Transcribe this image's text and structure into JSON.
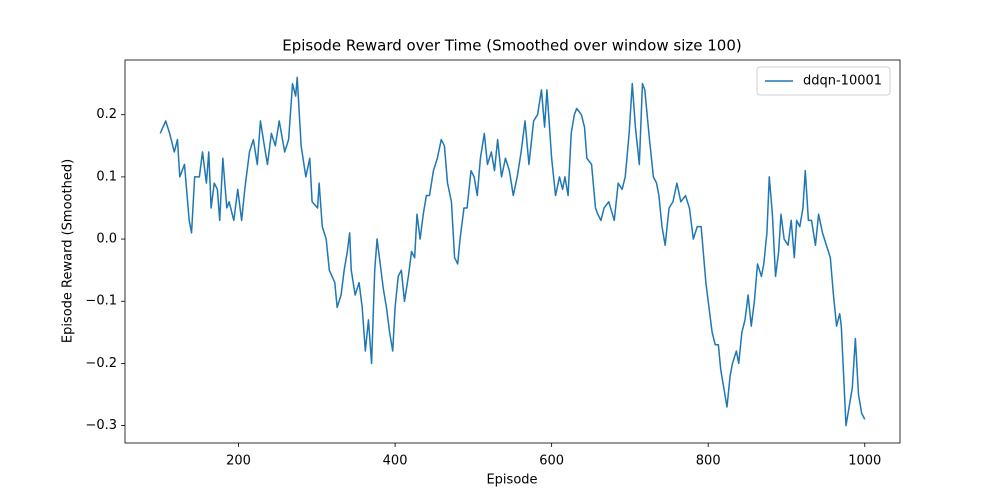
{
  "chart_data": {
    "type": "line",
    "title": "Episode Reward over Time (Smoothed over window size 100)",
    "xlabel": "Episode",
    "ylabel": "Episode Reward (Smoothed)",
    "xlim": [
      55,
      1045
    ],
    "ylim": [
      -0.328,
      0.288
    ],
    "xticks": [
      200,
      400,
      600,
      800,
      1000
    ],
    "yticks": [
      {
        "value": -0.3,
        "label": "−0.3"
      },
      {
        "value": -0.2,
        "label": "−0.2"
      },
      {
        "value": -0.1,
        "label": "−0.1"
      },
      {
        "value": 0,
        "label": "0.0"
      },
      0.1,
      0.2
    ],
    "legend": "upper right",
    "series": [
      {
        "name": "ddqn-10001",
        "color": "#1f77b4",
        "x": [
          100,
          107,
          112,
          118,
          122,
          125,
          131,
          137,
          140,
          144,
          150,
          154,
          159,
          162,
          165,
          169,
          173,
          176,
          180,
          185,
          188,
          194,
          199,
          204,
          208,
          214,
          219,
          224,
          228,
          233,
          237,
          242,
          247,
          252,
          259,
          264,
          269,
          273,
          275,
          280,
          286,
          291,
          294,
          301,
          303,
          307,
          312,
          316,
          323,
          326,
          331,
          335,
          339,
          342,
          344,
          349,
          354,
          358,
          362,
          366,
          370,
          374,
          377,
          381,
          385,
          389,
          393,
          397,
          400,
          404,
          408,
          412,
          417,
          421,
          425,
          428,
          432,
          436,
          440,
          444,
          449,
          454,
          459,
          463,
          467,
          472,
          476,
          480,
          483,
          488,
          492,
          497,
          501,
          505,
          509,
          514,
          518,
          523,
          527,
          531,
          536,
          541,
          546,
          551,
          556,
          561,
          566,
          571,
          577,
          582,
          587,
          591,
          594,
          600,
          605,
          610,
          614,
          617,
          621,
          625,
          629,
          632,
          638,
          642,
          645,
          651,
          656,
          659,
          663,
          667,
          673,
          680,
          685,
          690,
          694,
          699,
          703,
          707,
          712,
          716,
          719,
          725,
          730,
          734,
          737,
          741,
          745,
          750,
          755,
          760,
          765,
          771,
          776,
          781,
          786,
          791,
          797,
          802,
          805,
          809,
          813,
          816,
          820,
          824,
          828,
          831,
          836,
          839,
          843,
          847,
          851,
          855,
          859,
          863,
          868,
          871,
          875,
          878,
          882,
          886,
          890,
          893,
          897,
          902,
          906,
          910,
          913,
          917,
          921,
          924,
          928,
          932,
          937,
          941,
          946,
          951,
          956,
          960,
          964,
          968,
          970,
          973,
          976,
          980,
          984,
          988,
          992,
          996,
          1000
        ],
        "values": [
          0.17,
          0.19,
          0.17,
          0.14,
          0.16,
          0.1,
          0.12,
          0.03,
          0.01,
          0.1,
          0.1,
          0.14,
          0.09,
          0.14,
          0.05,
          0.09,
          0.08,
          0.03,
          0.13,
          0.05,
          0.06,
          0.03,
          0.08,
          0.03,
          0.08,
          0.14,
          0.16,
          0.12,
          0.19,
          0.15,
          0.12,
          0.17,
          0.15,
          0.19,
          0.14,
          0.16,
          0.25,
          0.23,
          0.26,
          0.15,
          0.1,
          0.13,
          0.06,
          0.05,
          0.09,
          0.02,
          0.0,
          -0.05,
          -0.07,
          -0.11,
          -0.09,
          -0.05,
          -0.02,
          0.01,
          -0.05,
          -0.09,
          -0.07,
          -0.11,
          -0.18,
          -0.13,
          -0.2,
          -0.05,
          0.0,
          -0.04,
          -0.08,
          -0.11,
          -0.15,
          -0.18,
          -0.11,
          -0.06,
          -0.05,
          -0.1,
          -0.06,
          -0.02,
          -0.03,
          0.04,
          0.0,
          0.04,
          0.07,
          0.07,
          0.11,
          0.13,
          0.16,
          0.15,
          0.09,
          0.06,
          -0.03,
          -0.04,
          0.0,
          0.05,
          0.05,
          0.11,
          0.1,
          0.07,
          0.13,
          0.17,
          0.12,
          0.14,
          0.11,
          0.16,
          0.1,
          0.13,
          0.11,
          0.07,
          0.1,
          0.14,
          0.19,
          0.12,
          0.19,
          0.2,
          0.24,
          0.18,
          0.24,
          0.13,
          0.07,
          0.1,
          0.08,
          0.1,
          0.07,
          0.17,
          0.2,
          0.21,
          0.2,
          0.18,
          0.13,
          0.12,
          0.05,
          0.04,
          0.03,
          0.05,
          0.06,
          0.03,
          0.09,
          0.08,
          0.1,
          0.17,
          0.25,
          0.18,
          0.12,
          0.25,
          0.24,
          0.16,
          0.1,
          0.09,
          0.07,
          0.02,
          -0.01,
          0.05,
          0.06,
          0.09,
          0.06,
          0.07,
          0.05,
          0.0,
          0.02,
          0.02,
          -0.07,
          -0.12,
          -0.15,
          -0.17,
          -0.17,
          -0.21,
          -0.24,
          -0.27,
          -0.22,
          -0.2,
          -0.18,
          -0.2,
          -0.15,
          -0.13,
          -0.09,
          -0.14,
          -0.1,
          -0.04,
          -0.06,
          -0.04,
          0.01,
          0.1,
          0.04,
          -0.06,
          -0.02,
          0.04,
          0.0,
          -0.01,
          0.03,
          -0.03,
          0.03,
          0.02,
          0.05,
          0.11,
          0.03,
          0.03,
          -0.01,
          0.04,
          0.01,
          -0.01,
          -0.03,
          -0.09,
          -0.14,
          -0.12,
          -0.14,
          -0.22,
          -0.3,
          -0.27,
          -0.24,
          -0.16,
          -0.25,
          -0.28,
          -0.29
        ]
      }
    ]
  }
}
